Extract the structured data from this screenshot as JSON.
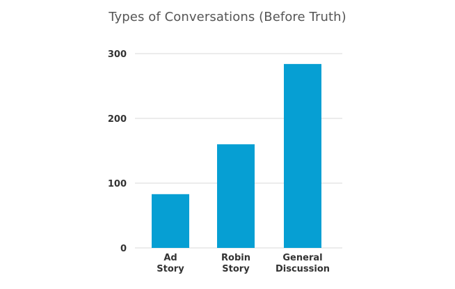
{
  "chart_data": {
    "type": "bar",
    "title": "Types of Conversations (Before Truth)",
    "categories": [
      "Ad Story",
      "Robin Story",
      "General Discussion"
    ],
    "category_lines": [
      [
        "Ad",
        "Story"
      ],
      [
        "Robin",
        "Story"
      ],
      [
        "General",
        "Discussion"
      ]
    ],
    "values": [
      83,
      160,
      284
    ],
    "ylim": [
      0,
      300
    ],
    "yticks": [
      0,
      100,
      200,
      300
    ],
    "grid": true,
    "bar_color": "#069fd3",
    "grid_color": "#d8d8d8"
  }
}
